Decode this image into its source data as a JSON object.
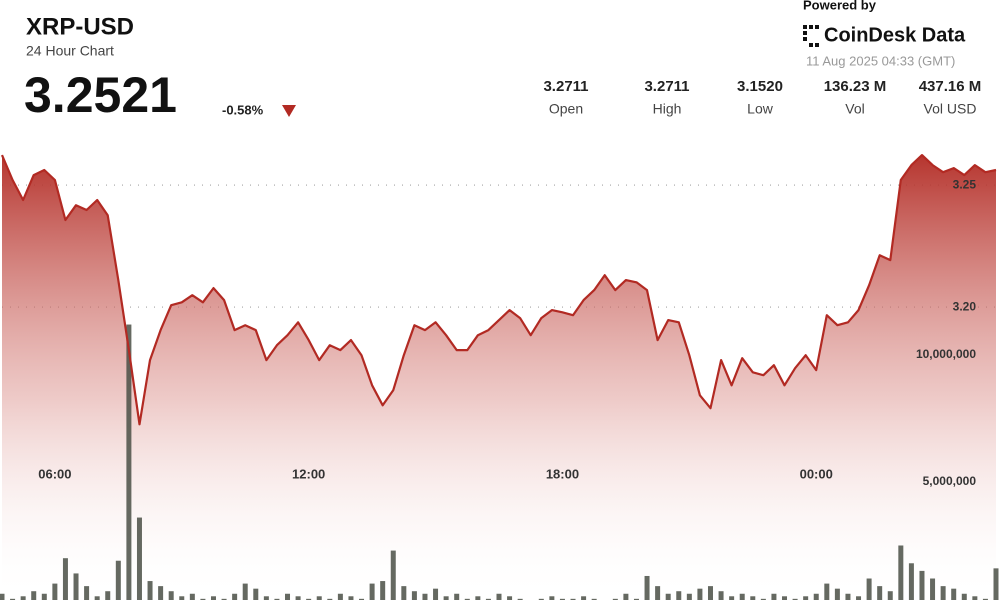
{
  "header": {
    "symbol": "XRP-USD",
    "subtitle": "24 Hour Chart",
    "price": "3.2521",
    "change": "-0.58%",
    "powered_by": "Powered by",
    "brand": "CoinDesk Data",
    "timestamp": "11 Aug 2025 04:33 (GMT)",
    "stats": [
      {
        "value": "3.2711",
        "label": "Open"
      },
      {
        "value": "3.2711",
        "label": "High"
      },
      {
        "value": "3.1520",
        "label": "Low"
      },
      {
        "value": "136.23 M",
        "label": "Vol"
      },
      {
        "value": "437.16 M",
        "label": "Vol USD"
      }
    ]
  },
  "chart_data": {
    "type": "line",
    "categories": [
      null,
      null,
      null,
      null,
      null,
      "06:00",
      null,
      null,
      null,
      null,
      null,
      null,
      null,
      null,
      null,
      null,
      null,
      null,
      null,
      null,
      null,
      null,
      null,
      null,
      null,
      null,
      null,
      null,
      null,
      "12:00",
      null,
      null,
      null,
      null,
      null,
      null,
      null,
      null,
      null,
      null,
      null,
      null,
      null,
      null,
      null,
      null,
      null,
      null,
      null,
      null,
      null,
      null,
      null,
      "18:00",
      null,
      null,
      null,
      null,
      null,
      null,
      null,
      null,
      null,
      null,
      null,
      null,
      null,
      null,
      null,
      null,
      null,
      null,
      null,
      null,
      null,
      null,
      null,
      "00:00",
      null,
      null,
      null,
      null,
      null,
      null,
      null,
      null,
      null,
      null,
      null,
      null,
      null,
      null,
      null,
      null,
      null
    ],
    "series": [
      {
        "color": "#b22a23",
        "values": [
          3.2623,
          3.2521,
          3.2439,
          3.2541,
          3.2562,
          3.2521,
          3.2357,
          3.2418,
          3.2398,
          3.2439,
          3.2377,
          3.2111,
          3.1824,
          3.152,
          3.1783,
          3.1906,
          3.2008,
          3.202,
          3.2049,
          3.202,
          3.2078,
          3.2029,
          3.1906,
          3.1926,
          3.1906,
          3.1783,
          3.1844,
          3.1885,
          3.1938,
          3.1865,
          3.1783,
          3.1844,
          3.1824,
          3.1865,
          3.1803,
          3.168,
          3.1598,
          3.166,
          3.1803,
          3.1926,
          3.1906,
          3.1938,
          3.1885,
          3.1824,
          3.1824,
          3.1885,
          3.1906,
          3.1947,
          3.1988,
          3.1955,
          3.1885,
          3.1955,
          3.1988,
          3.1979,
          3.1967,
          3.2029,
          3.207,
          3.2131,
          3.207,
          3.2111,
          3.2102,
          3.207,
          3.1865,
          3.1947,
          3.1938,
          3.1803,
          3.1639,
          3.1586,
          3.1783,
          3.168,
          3.1791,
          3.1733,
          3.1721,
          3.1762,
          3.168,
          3.175,
          3.1803,
          3.1742,
          3.1967,
          3.1926,
          3.1938,
          3.1988,
          3.209,
          3.2213,
          3.2193,
          3.2521,
          3.2582,
          3.2623,
          3.2582,
          3.2553,
          3.257,
          3.2541,
          3.2582,
          3.2553,
          3.2562
        ]
      },
      {
        "type": "bar",
        "axis": "y2",
        "color": "#4a4f45",
        "values": [
          600000,
          400000,
          500000,
          700000,
          600000,
          1000000,
          2000000,
          1400000,
          900000,
          500000,
          700000,
          1900000,
          11200000,
          3600000,
          1100000,
          900000,
          700000,
          500000,
          600000,
          400000,
          500000,
          400000,
          600000,
          1000000,
          800000,
          500000,
          400000,
          600000,
          500000,
          400000,
          500000,
          400000,
          600000,
          500000,
          400000,
          1000000,
          1100000,
          2300000,
          900000,
          700000,
          600000,
          800000,
          500000,
          600000,
          400000,
          500000,
          400000,
          600000,
          500000,
          400000,
          300000,
          400000,
          500000,
          400000,
          400000,
          500000,
          400000,
          300000,
          400000,
          600000,
          400000,
          1300000,
          900000,
          600000,
          700000,
          600000,
          800000,
          900000,
          700000,
          500000,
          600000,
          500000,
          400000,
          600000,
          500000,
          400000,
          500000,
          600000,
          1000000,
          800000,
          600000,
          500000,
          1200000,
          900000,
          700000,
          2500000,
          1800000,
          1500000,
          1200000,
          900000,
          800000,
          600000,
          500000,
          400000,
          1600000
        ]
      }
    ],
    "ylim": [
      3.08,
      3.2685
    ],
    "yticks": [
      3.25,
      {
        "value": 3.2,
        "label": "3.20"
      }
    ],
    "y2lim": [
      354000,
      18465000
    ],
    "y2ticks": [
      {
        "value": 10000000,
        "label": "10,000,000"
      },
      {
        "value": 5000000,
        "label": "5,000,000"
      }
    ],
    "grid": true
  }
}
